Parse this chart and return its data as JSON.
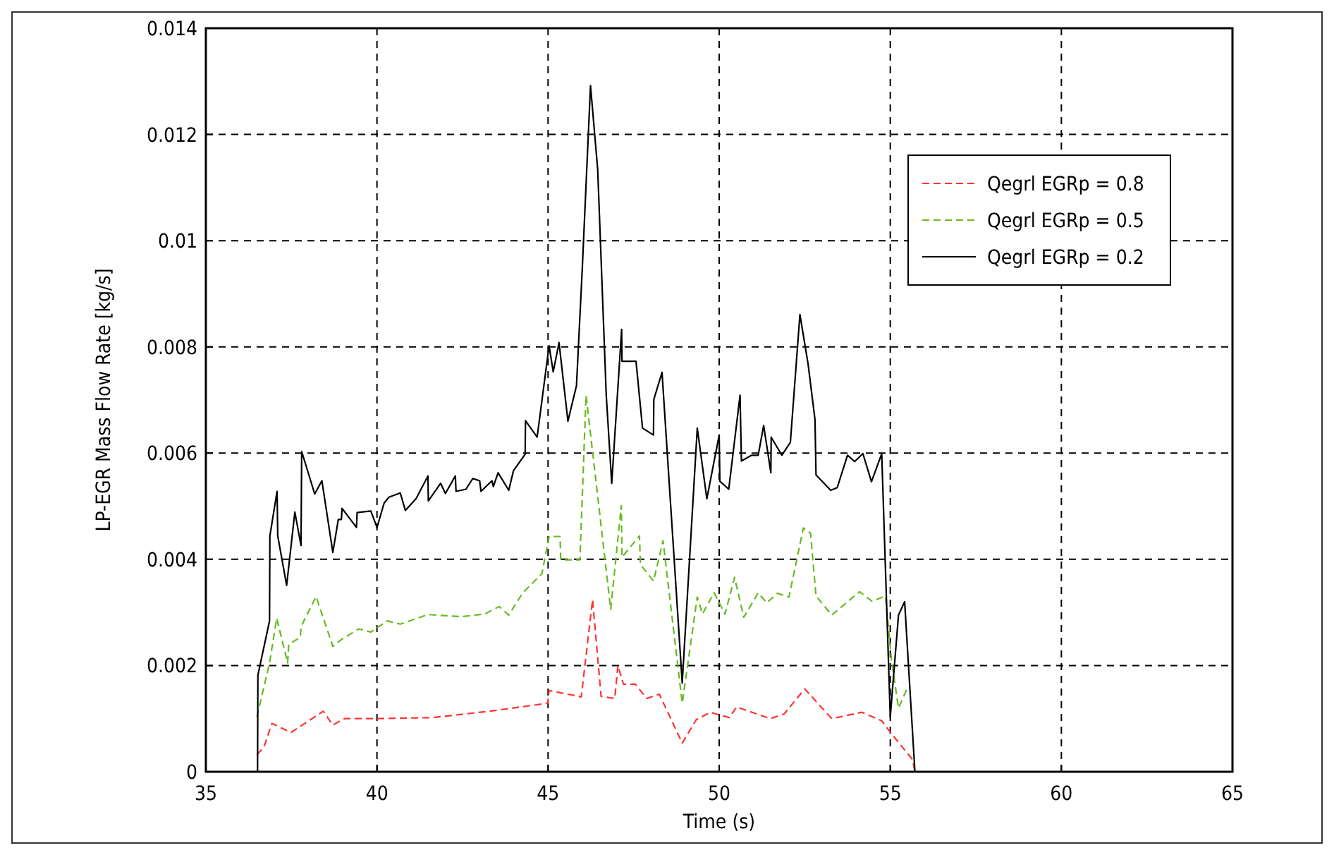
{
  "chart_data": {
    "type": "line",
    "xlabel": "Time (s)",
    "ylabel": "LP-EGR Mass Flow Rate [kg/s]",
    "xlim": [
      35,
      65
    ],
    "xticks": [
      35,
      40,
      45,
      50,
      55,
      60,
      65
    ],
    "ylim": [
      0,
      0.014
    ],
    "yticks": [
      0,
      0.002,
      0.004,
      0.006,
      0.008,
      0.01,
      0.012,
      0.014
    ],
    "grid": true,
    "legend": "top right",
    "marker": "none",
    "series": [
      {
        "name": "Qegrl EGRp = 0.8",
        "color": "#ff3333",
        "line_style": "dashed",
        "x": [
          36.49,
          36.7,
          36.93,
          37.49,
          38.43,
          38.71,
          39.05,
          39.9,
          41.63,
          43.29,
          44.99,
          45.03,
          45.97,
          46.3,
          46.55,
          46.95,
          47.04,
          47.2,
          47.55,
          47.88,
          48.25,
          48.92,
          49.33,
          49.75,
          49.9,
          50.3,
          50.51,
          51.49,
          51.9,
          52.5,
          53.29,
          54.17,
          54.75,
          55.03,
          55.65,
          55.72
        ],
        "values": [
          0.00032,
          0.00047,
          0.00091,
          0.00074,
          0.00114,
          0.00088,
          0.001,
          0.001,
          0.00102,
          0.00114,
          0.00129,
          0.00153,
          0.00141,
          0.00324,
          0.00142,
          0.00138,
          0.002,
          0.00165,
          0.00165,
          0.00138,
          0.00146,
          0.00054,
          0.00098,
          0.00112,
          0.00109,
          0.00102,
          0.00122,
          0.001,
          0.00109,
          0.00156,
          0.001,
          0.00112,
          0.00096,
          0.00072,
          0.00023,
          0
        ]
      },
      {
        "name": "Qegrl EGRp = 0.5",
        "color": "#66bb22",
        "line_style": "dashed",
        "x": [
          36.49,
          36.86,
          37.07,
          37.39,
          37.42,
          37.76,
          37.78,
          38.22,
          38.71,
          38.96,
          39.47,
          39.82,
          40.3,
          40.68,
          41.49,
          42.46,
          43.15,
          43.57,
          43.85,
          44.26,
          44.82,
          45.03,
          45.35,
          45.37,
          45.93,
          46.11,
          46.83,
          47.14,
          47.16,
          47.67,
          47.7,
          48.08,
          48.36,
          48.92,
          49.36,
          49.51,
          49.85,
          50.17,
          50.45,
          50.72,
          51.14,
          51.39,
          51.7,
          52.04,
          52.46,
          52.67,
          52.83,
          53.29,
          54.1,
          54.47,
          54.86,
          55.03,
          55.24,
          55.51
        ],
        "values": [
          0.00103,
          0.00205,
          0.00289,
          0.00205,
          0.0024,
          0.00253,
          0.00273,
          0.0033,
          0.00236,
          0.00249,
          0.00269,
          0.00263,
          0.00284,
          0.00278,
          0.00296,
          0.00292,
          0.00297,
          0.00311,
          0.00295,
          0.00337,
          0.00373,
          0.00443,
          0.00443,
          0.00399,
          0.00399,
          0.00709,
          0.00306,
          0.00501,
          0.00404,
          0.00444,
          0.0039,
          0.00359,
          0.00435,
          0.00129,
          0.00329,
          0.00297,
          0.00337,
          0.00297,
          0.00366,
          0.00291,
          0.00337,
          0.00318,
          0.00336,
          0.00329,
          0.00459,
          0.00449,
          0.00331,
          0.00295,
          0.00339,
          0.00321,
          0.00331,
          0.00213,
          0.0012,
          0.00159
        ]
      },
      {
        "name": "Qegrl EGRp = 0.2",
        "color": "#000000",
        "line_style": "solid",
        "x": [
          36.51,
          36.52,
          36.86,
          36.87,
          37.08,
          37.1,
          37.36,
          37.6,
          37.78,
          37.8,
          38.18,
          38.39,
          38.71,
          38.87,
          38.96,
          38.98,
          39.4,
          39.42,
          39.82,
          40,
          40.21,
          40.35,
          40.68,
          40.83,
          41.14,
          41.49,
          41.5,
          41.86,
          42.0,
          42.29,
          42.31,
          42.6,
          42.8,
          43.0,
          43.04,
          43.36,
          43.4,
          43.54,
          43.85,
          43.99,
          44.33,
          44.34,
          44.68,
          45.03,
          45.15,
          45.32,
          45.58,
          45.83,
          46,
          46.24,
          46.45,
          46.7,
          46.86,
          47.15,
          47.16,
          47.57,
          47.76,
          48.08,
          48.09,
          48.33,
          48.92,
          49.15,
          49.36,
          49.64,
          50,
          50.02,
          50.28,
          50.61,
          50.65,
          50.95,
          51.14,
          51.3,
          51.51,
          51.52,
          51.83,
          52.08,
          52.36,
          52.6,
          52.8,
          52.83,
          53.26,
          53.45,
          53.75,
          53.96,
          54.2,
          54.45,
          54.75,
          55,
          55.24,
          55.42,
          55.72
        ],
        "values": [
          0,
          0.00182,
          0.00284,
          0.00444,
          0.00528,
          0.00444,
          0.00351,
          0.00489,
          0.00426,
          0.00603,
          0.00523,
          0.00548,
          0.00413,
          0.00475,
          0.00475,
          0.00496,
          0.0046,
          0.00488,
          0.00491,
          0.0046,
          0.00506,
          0.00517,
          0.00525,
          0.00492,
          0.00514,
          0.00557,
          0.0051,
          0.00543,
          0.00524,
          0.00557,
          0.00528,
          0.00532,
          0.00552,
          0.00548,
          0.00528,
          0.00548,
          0.00537,
          0.00563,
          0.0053,
          0.00567,
          0.00598,
          0.00661,
          0.0063,
          0.00802,
          0.00753,
          0.00808,
          0.0066,
          0.00727,
          0.00948,
          0.01292,
          0.01134,
          0.00709,
          0.00543,
          0.00833,
          0.00773,
          0.00773,
          0.00647,
          0.00634,
          0.00701,
          0.00752,
          0.00167,
          0.00417,
          0.00647,
          0.00514,
          0.00634,
          0.00547,
          0.00532,
          0.00709,
          0.00585,
          0.00596,
          0.00596,
          0.00652,
          0.00563,
          0.0063,
          0.00596,
          0.0062,
          0.00861,
          0.00767,
          0.00663,
          0.00559,
          0.0053,
          0.00535,
          0.00596,
          0.00584,
          0.00599,
          0.00546,
          0.00599,
          0.00103,
          0.00295,
          0.0032,
          0
        ]
      }
    ]
  }
}
